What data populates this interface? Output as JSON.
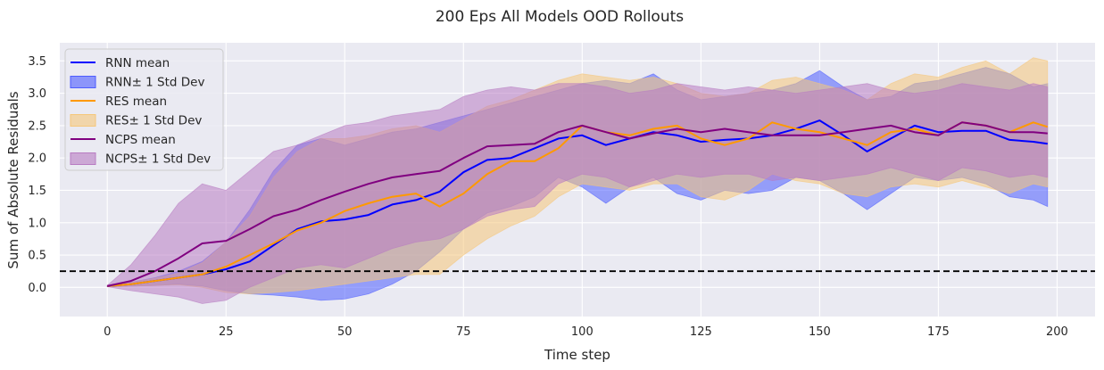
{
  "chart_data": {
    "type": "line",
    "title": "200 Eps All Models OOD Rollouts",
    "xlabel": "Time step",
    "ylabel": "Sum of Absolute Residuals",
    "xlim": [
      -10,
      208
    ],
    "ylim": [
      -0.45,
      3.78
    ],
    "x_ticks": [
      0,
      25,
      50,
      75,
      100,
      125,
      150,
      175,
      200
    ],
    "y_ticks": [
      0.0,
      0.5,
      1.0,
      1.5,
      2.0,
      2.5,
      3.0,
      3.5
    ],
    "grid": true,
    "legend_position": "upper-left",
    "threshold_line": {
      "y": 0.25,
      "style": "dashed",
      "color": "#000000"
    },
    "x": [
      0,
      5,
      10,
      15,
      20,
      25,
      30,
      35,
      40,
      45,
      50,
      55,
      60,
      65,
      70,
      75,
      80,
      85,
      90,
      95,
      100,
      105,
      110,
      115,
      120,
      125,
      130,
      135,
      140,
      145,
      150,
      155,
      160,
      165,
      170,
      175,
      180,
      185,
      190,
      195,
      198
    ],
    "series": [
      {
        "name": "RNN mean",
        "band_name": "RNN± 1 Std Dev",
        "color": "#0000ff",
        "fill": "#4d5cff",
        "mean": [
          0.02,
          0.05,
          0.1,
          0.15,
          0.2,
          0.28,
          0.4,
          0.65,
          0.9,
          1.02,
          1.05,
          1.12,
          1.28,
          1.35,
          1.48,
          1.78,
          1.97,
          2.0,
          2.15,
          2.3,
          2.35,
          2.2,
          2.3,
          2.4,
          2.35,
          2.25,
          2.28,
          2.3,
          2.35,
          2.45,
          2.58,
          2.35,
          2.1,
          2.3,
          2.5,
          2.4,
          2.42,
          2.42,
          2.28,
          2.25,
          2.22
        ],
        "upper": [
          0.03,
          0.08,
          0.15,
          0.25,
          0.4,
          0.7,
          1.2,
          1.8,
          2.2,
          2.3,
          2.2,
          2.3,
          2.4,
          2.45,
          2.55,
          2.65,
          2.75,
          2.85,
          2.95,
          3.05,
          3.15,
          3.2,
          3.15,
          3.3,
          3.05,
          2.9,
          2.95,
          3.0,
          3.05,
          3.15,
          3.35,
          3.1,
          2.9,
          2.95,
          3.15,
          3.2,
          3.3,
          3.4,
          3.3,
          3.1,
          3.15
        ],
        "lower": [
          0.01,
          0.02,
          0.03,
          0.05,
          0.02,
          -0.05,
          -0.1,
          -0.12,
          -0.15,
          -0.2,
          -0.18,
          -0.1,
          0.05,
          0.25,
          0.55,
          0.9,
          1.15,
          1.25,
          1.4,
          1.7,
          1.55,
          1.3,
          1.55,
          1.7,
          1.45,
          1.35,
          1.5,
          1.45,
          1.5,
          1.7,
          1.65,
          1.45,
          1.2,
          1.45,
          1.7,
          1.65,
          1.7,
          1.6,
          1.4,
          1.35,
          1.25
        ]
      },
      {
        "name": "RES mean",
        "band_name": "RES± 1 Std Dev",
        "color": "#ff9900",
        "fill": "#f5c77a",
        "mean": [
          0.02,
          0.05,
          0.1,
          0.15,
          0.2,
          0.32,
          0.5,
          0.68,
          0.88,
          1.0,
          1.18,
          1.3,
          1.4,
          1.45,
          1.25,
          1.45,
          1.75,
          1.95,
          1.95,
          2.15,
          2.5,
          2.4,
          2.35,
          2.45,
          2.5,
          2.3,
          2.2,
          2.3,
          2.55,
          2.45,
          2.4,
          2.3,
          2.2,
          2.4,
          2.45,
          2.35,
          2.55,
          2.5,
          2.4,
          2.55,
          2.48
        ],
        "upper": [
          0.03,
          0.08,
          0.14,
          0.22,
          0.38,
          0.7,
          1.1,
          1.7,
          2.1,
          2.3,
          2.3,
          2.35,
          2.45,
          2.5,
          2.4,
          2.6,
          2.8,
          2.9,
          3.05,
          3.2,
          3.3,
          3.25,
          3.2,
          3.25,
          3.15,
          3.0,
          2.95,
          3.0,
          3.2,
          3.25,
          3.15,
          3.05,
          2.9,
          3.15,
          3.3,
          3.25,
          3.4,
          3.5,
          3.3,
          3.55,
          3.5
        ],
        "lower": [
          0.01,
          0.02,
          0.03,
          0.04,
          0.0,
          -0.08,
          -0.1,
          -0.08,
          -0.05,
          0.0,
          0.05,
          0.1,
          0.15,
          0.2,
          0.2,
          0.5,
          0.75,
          0.95,
          1.1,
          1.4,
          1.6,
          1.55,
          1.5,
          1.6,
          1.6,
          1.4,
          1.35,
          1.5,
          1.75,
          1.65,
          1.6,
          1.45,
          1.4,
          1.55,
          1.6,
          1.55,
          1.65,
          1.55,
          1.45,
          1.6,
          1.55
        ]
      },
      {
        "name": "NCPS mean",
        "band_name": "NCPS± 1 Std Dev",
        "color": "#800080",
        "fill": "#b87cc2",
        "mean": [
          0.02,
          0.1,
          0.25,
          0.45,
          0.68,
          0.72,
          0.9,
          1.1,
          1.2,
          1.35,
          1.48,
          1.6,
          1.7,
          1.75,
          1.8,
          2.0,
          2.18,
          2.2,
          2.22,
          2.4,
          2.5,
          2.4,
          2.3,
          2.38,
          2.45,
          2.4,
          2.45,
          2.4,
          2.35,
          2.35,
          2.35,
          2.4,
          2.45,
          2.5,
          2.4,
          2.35,
          2.55,
          2.5,
          2.4,
          2.4,
          2.38
        ],
        "upper": [
          0.03,
          0.35,
          0.8,
          1.3,
          1.6,
          1.5,
          1.8,
          2.1,
          2.2,
          2.35,
          2.5,
          2.55,
          2.65,
          2.7,
          2.75,
          2.95,
          3.05,
          3.1,
          3.05,
          3.15,
          3.15,
          3.1,
          3.0,
          3.05,
          3.15,
          3.1,
          3.05,
          3.1,
          3.05,
          3.0,
          3.05,
          3.1,
          3.15,
          3.05,
          3.0,
          3.05,
          3.15,
          3.1,
          3.05,
          3.15,
          3.1
        ],
        "lower": [
          0.01,
          -0.05,
          -0.1,
          -0.15,
          -0.25,
          -0.2,
          0.0,
          0.15,
          0.3,
          0.35,
          0.3,
          0.45,
          0.6,
          0.7,
          0.75,
          0.9,
          1.1,
          1.2,
          1.25,
          1.6,
          1.75,
          1.7,
          1.55,
          1.65,
          1.75,
          1.7,
          1.75,
          1.75,
          1.65,
          1.7,
          1.65,
          1.7,
          1.75,
          1.85,
          1.75,
          1.65,
          1.85,
          1.8,
          1.7,
          1.75,
          1.7
        ]
      }
    ]
  }
}
